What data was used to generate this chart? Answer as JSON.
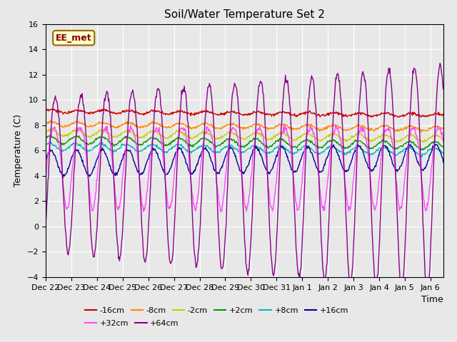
{
  "title": "Soil/Water Temperature Set 2",
  "xlabel": "Time",
  "ylabel": "Temperature (C)",
  "ylim": [
    -4,
    16
  ],
  "xlim_start": 0,
  "xlim_end": 15.5,
  "fig_bg_color": "#e8e8e8",
  "plot_bg_color": "#e8e8e8",
  "grid_color": "#ffffff",
  "annotation_text": "EE_met",
  "annotation_bg": "#ffffcc",
  "annotation_border": "#996600",
  "series": [
    {
      "label": "-16cm",
      "color": "#cc0000",
      "base": 9.1,
      "amp": 0.12,
      "phase": 0.0,
      "trend": -0.02
    },
    {
      "label": "-8cm",
      "color": "#ff8800",
      "base": 8.1,
      "amp": 0.18,
      "phase": 0.05,
      "trend": -0.025
    },
    {
      "label": "-2cm",
      "color": "#cccc00",
      "base": 7.4,
      "amp": 0.25,
      "phase": 0.1,
      "trend": -0.03
    },
    {
      "label": "+2cm",
      "color": "#009900",
      "base": 6.85,
      "amp": 0.3,
      "phase": 0.15,
      "trend": -0.03
    },
    {
      "label": "+8cm",
      "color": "#00bbbb",
      "base": 6.3,
      "amp": 0.28,
      "phase": 0.2,
      "trend": -0.025
    },
    {
      "label": "+16cm",
      "color": "#000099",
      "base": 5.1,
      "amp": 0.0,
      "phase": 0.0,
      "trend": 0.0
    },
    {
      "label": "+32cm",
      "color": "#ff44ff",
      "base": 5.5,
      "amp": 0.0,
      "phase": 0.0,
      "trend": 0.0
    },
    {
      "label": "+64cm",
      "color": "#880088",
      "base": 5.0,
      "amp": 0.0,
      "phase": 0.0,
      "trend": 0.0
    }
  ],
  "tick_labels": [
    "Dec 22",
    "Dec 23",
    "Dec 24",
    "Dec 25",
    "Dec 26",
    "Dec 27",
    "Dec 28",
    "Dec 29",
    "Dec 30",
    "Dec 31",
    "Jan 1",
    "Jan 2",
    "Jan 3",
    "Jan 4",
    "Jan 5",
    "Jan 6"
  ],
  "yticks": [
    -4,
    -2,
    0,
    2,
    4,
    6,
    8,
    10,
    12,
    14,
    16
  ],
  "legend_row1": [
    {
      "label": "-16cm",
      "color": "#cc0000"
    },
    {
      "label": "-8cm",
      "color": "#ff8800"
    },
    {
      "label": "-2cm",
      "color": "#cccc00"
    },
    {
      "label": "+2cm",
      "color": "#009900"
    },
    {
      "label": "+8cm",
      "color": "#00bbbb"
    },
    {
      "label": "+16cm",
      "color": "#000099"
    }
  ],
  "legend_row2": [
    {
      "label": "+32cm",
      "color": "#ff44ff"
    },
    {
      "label": "+64cm",
      "color": "#880088"
    }
  ]
}
